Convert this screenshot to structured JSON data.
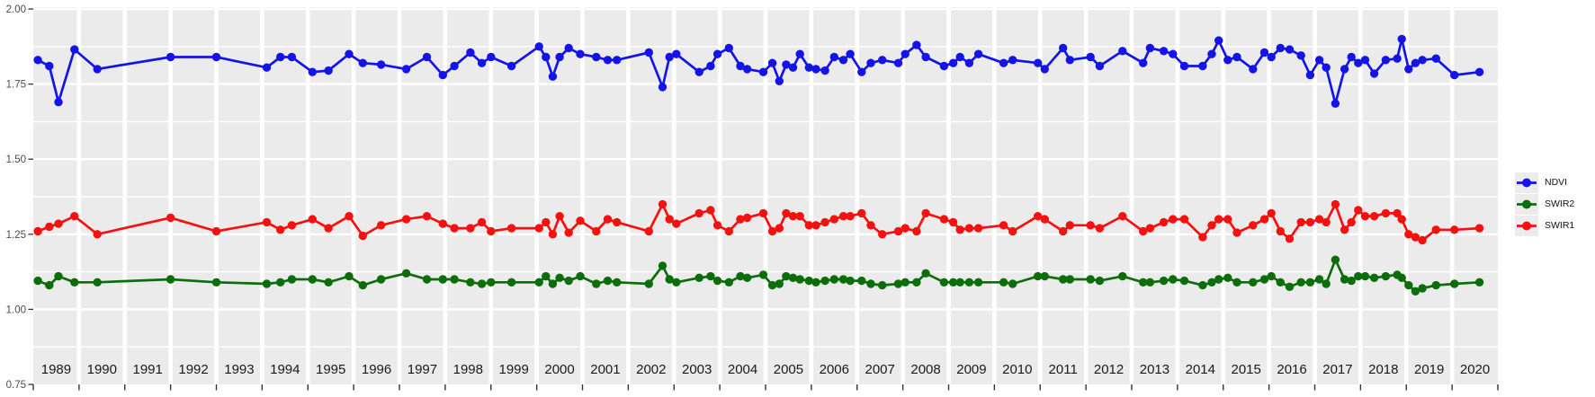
{
  "chart_data": {
    "type": "line",
    "title": "",
    "xlabel": "",
    "ylabel": "",
    "ylim": [
      0.75,
      2.0
    ],
    "xlim": [
      1989,
      2021
    ],
    "grid": "white major+minor gridlines on gray panel, vertical white gaps at each year boundary",
    "y_axis_tick_labels": [
      "2.00",
      "1.75",
      "1.50",
      "1.25",
      "1.00",
      "0.75"
    ],
    "y_major_ticks": [
      2.0,
      1.75,
      1.5,
      1.25,
      1.0,
      0.75
    ],
    "y_minor_ticks": [
      1.875,
      1.625,
      1.375,
      1.125,
      0.875
    ],
    "x_panel_year_labels": [
      "1989",
      "1990",
      "1991",
      "1992",
      "1993",
      "1994",
      "1995",
      "1996",
      "1997",
      "1998",
      "1999",
      "2000",
      "2001",
      "2002",
      "2003",
      "2004",
      "2005",
      "2006",
      "2007",
      "2008",
      "2009",
      "2010",
      "2011",
      "2012",
      "2013",
      "2014",
      "2015",
      "2016",
      "2017",
      "2018",
      "2019",
      "2020"
    ],
    "x": [
      1989.1,
      1989.35,
      1989.55,
      1989.9,
      1990.4,
      1992.0,
      1993.0,
      1994.1,
      1994.4,
      1994.65,
      1995.1,
      1995.45,
      1995.9,
      1996.2,
      1996.6,
      1997.15,
      1997.6,
      1997.95,
      1998.2,
      1998.55,
      1998.8,
      1999.0,
      1999.45,
      2000.05,
      2000.2,
      2000.35,
      2000.5,
      2000.7,
      2000.95,
      2001.3,
      2001.55,
      2001.75,
      2002.45,
      2002.75,
      2002.9,
      2003.05,
      2003.55,
      2003.8,
      2003.95,
      2004.2,
      2004.45,
      2004.6,
      2004.95,
      2005.15,
      2005.3,
      2005.45,
      2005.6,
      2005.75,
      2005.95,
      2006.1,
      2006.3,
      2006.5,
      2006.7,
      2006.85,
      2007.1,
      2007.3,
      2007.55,
      2007.9,
      2008.05,
      2008.3,
      2008.5,
      2008.9,
      2009.1,
      2009.25,
      2009.45,
      2009.65,
      2010.2,
      2010.4,
      2010.95,
      2011.1,
      2011.5,
      2011.65,
      2012.1,
      2012.3,
      2012.8,
      2013.25,
      2013.4,
      2013.7,
      2013.9,
      2014.15,
      2014.55,
      2014.75,
      2014.9,
      2015.1,
      2015.3,
      2015.65,
      2015.9,
      2016.05,
      2016.25,
      2016.45,
      2016.7,
      2016.9,
      2017.1,
      2017.25,
      2017.45,
      2017.65,
      2017.8,
      2017.95,
      2018.1,
      2018.3,
      2018.55,
      2018.8,
      2018.9,
      2019.05,
      2019.2,
      2019.35,
      2019.65,
      2020.05,
      2020.6
    ],
    "series": [
      {
        "name": "NDVI",
        "color": "#1414E8",
        "values": [
          1.83,
          1.81,
          1.69,
          1.865,
          1.8,
          1.84,
          1.84,
          1.805,
          1.84,
          1.84,
          1.79,
          1.795,
          1.85,
          1.82,
          1.815,
          1.8,
          1.84,
          1.78,
          1.81,
          1.855,
          1.82,
          1.84,
          1.81,
          1.875,
          1.84,
          1.775,
          1.84,
          1.87,
          1.85,
          1.84,
          1.83,
          1.83,
          1.855,
          1.74,
          1.84,
          1.85,
          1.79,
          1.81,
          1.85,
          1.87,
          1.81,
          1.8,
          1.79,
          1.82,
          1.76,
          1.815,
          1.805,
          1.85,
          1.805,
          1.8,
          1.795,
          1.84,
          1.83,
          1.85,
          1.79,
          1.82,
          1.83,
          1.82,
          1.85,
          1.88,
          1.84,
          1.81,
          1.82,
          1.84,
          1.82,
          1.85,
          1.82,
          1.83,
          1.82,
          1.8,
          1.87,
          1.83,
          1.84,
          1.81,
          1.86,
          1.82,
          1.87,
          1.86,
          1.85,
          1.81,
          1.81,
          1.85,
          1.895,
          1.83,
          1.84,
          1.8,
          1.855,
          1.84,
          1.87,
          1.865,
          1.845,
          1.78,
          1.83,
          1.805,
          1.685,
          1.8,
          1.84,
          1.82,
          1.83,
          1.785,
          1.83,
          1.835,
          1.9,
          1.8,
          1.82,
          1.83,
          1.835,
          1.78,
          1.79
        ]
      },
      {
        "name": "SWIR2",
        "color": "#0B6E0B",
        "values": [
          1.095,
          1.08,
          1.11,
          1.09,
          1.09,
          1.1,
          1.09,
          1.085,
          1.09,
          1.1,
          1.1,
          1.09,
          1.11,
          1.08,
          1.1,
          1.12,
          1.1,
          1.1,
          1.1,
          1.09,
          1.085,
          1.09,
          1.09,
          1.09,
          1.11,
          1.085,
          1.105,
          1.095,
          1.11,
          1.085,
          1.095,
          1.09,
          1.085,
          1.145,
          1.1,
          1.09,
          1.105,
          1.11,
          1.095,
          1.09,
          1.11,
          1.105,
          1.115,
          1.08,
          1.085,
          1.11,
          1.105,
          1.1,
          1.095,
          1.09,
          1.095,
          1.1,
          1.1,
          1.095,
          1.095,
          1.085,
          1.08,
          1.085,
          1.09,
          1.09,
          1.12,
          1.09,
          1.09,
          1.09,
          1.09,
          1.09,
          1.09,
          1.085,
          1.11,
          1.11,
          1.1,
          1.1,
          1.1,
          1.095,
          1.11,
          1.09,
          1.09,
          1.095,
          1.1,
          1.095,
          1.08,
          1.09,
          1.1,
          1.105,
          1.09,
          1.09,
          1.1,
          1.11,
          1.09,
          1.075,
          1.09,
          1.09,
          1.1,
          1.085,
          1.165,
          1.1,
          1.095,
          1.11,
          1.11,
          1.105,
          1.11,
          1.115,
          1.105,
          1.08,
          1.06,
          1.07,
          1.08,
          1.085,
          1.09
        ]
      },
      {
        "name": "SWIR1",
        "color": "#F81010",
        "values": [
          1.26,
          1.275,
          1.285,
          1.31,
          1.25,
          1.305,
          1.26,
          1.29,
          1.265,
          1.28,
          1.3,
          1.27,
          1.31,
          1.245,
          1.28,
          1.3,
          1.31,
          1.285,
          1.27,
          1.27,
          1.29,
          1.26,
          1.27,
          1.27,
          1.29,
          1.25,
          1.31,
          1.255,
          1.295,
          1.26,
          1.3,
          1.29,
          1.26,
          1.35,
          1.3,
          1.285,
          1.32,
          1.33,
          1.28,
          1.26,
          1.3,
          1.305,
          1.32,
          1.26,
          1.27,
          1.32,
          1.31,
          1.31,
          1.28,
          1.28,
          1.29,
          1.3,
          1.31,
          1.31,
          1.32,
          1.28,
          1.25,
          1.26,
          1.27,
          1.26,
          1.32,
          1.3,
          1.29,
          1.265,
          1.27,
          1.27,
          1.28,
          1.26,
          1.31,
          1.3,
          1.26,
          1.28,
          1.28,
          1.27,
          1.31,
          1.26,
          1.27,
          1.29,
          1.3,
          1.3,
          1.24,
          1.28,
          1.3,
          1.3,
          1.255,
          1.28,
          1.3,
          1.32,
          1.26,
          1.235,
          1.29,
          1.29,
          1.3,
          1.29,
          1.35,
          1.265,
          1.29,
          1.33,
          1.31,
          1.31,
          1.32,
          1.32,
          1.3,
          1.25,
          1.24,
          1.23,
          1.265,
          1.265,
          1.27
        ]
      }
    ],
    "legend": {
      "position": "right",
      "entries": [
        "NDVI",
        "SWIR2",
        "SWIR1"
      ]
    },
    "style": {
      "panel_bg": "#EBEBEB",
      "grid_color": "#FFFFFF",
      "axis_text_color": "#4D4D4D",
      "year_label_color": "#1A1A1A",
      "tick_color": "#333333",
      "legend_key_bg": "#ECECEC"
    }
  }
}
